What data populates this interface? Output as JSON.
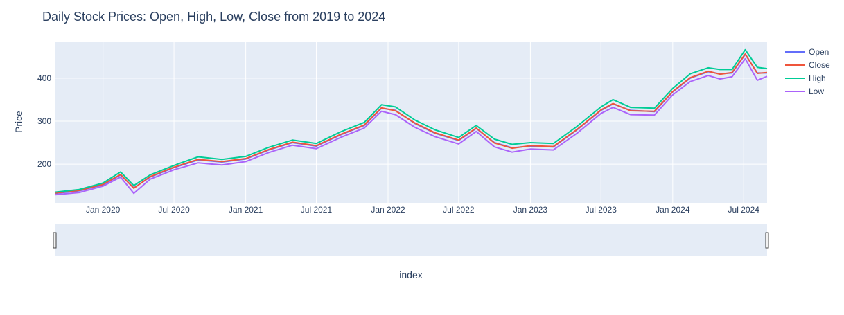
{
  "chart_data": {
    "type": "line",
    "title": "Daily Stock Prices: Open, High, Low, Close from 2019 to 2024",
    "xlabel": "index",
    "ylabel": "Price",
    "x_type": "date",
    "xlim": [
      "2019-09-01",
      "2024-08-30"
    ],
    "ylim": [
      110,
      485
    ],
    "x_ticks": [
      {
        "date": "2020-01-01",
        "label": "Jan 2020"
      },
      {
        "date": "2020-07-01",
        "label": "Jul 2020"
      },
      {
        "date": "2021-01-01",
        "label": "Jan 2021"
      },
      {
        "date": "2021-07-01",
        "label": "Jul 2021"
      },
      {
        "date": "2022-01-01",
        "label": "Jan 2022"
      },
      {
        "date": "2022-07-01",
        "label": "Jul 2022"
      },
      {
        "date": "2023-01-01",
        "label": "Jan 2023"
      },
      {
        "date": "2023-07-01",
        "label": "Jul 2023"
      },
      {
        "date": "2024-01-01",
        "label": "Jan 2024"
      },
      {
        "date": "2024-07-01",
        "label": "Jul 2024"
      }
    ],
    "y_ticks": [
      200,
      300,
      400
    ],
    "grid": true,
    "legend_position": "top-right",
    "range_slider": true,
    "series": [
      {
        "name": "Open",
        "color": "#636efa",
        "x": [
          "2019-09-01",
          "2019-11-01",
          "2020-01-01",
          "2020-02-15",
          "2020-03-20",
          "2020-05-01",
          "2020-07-01",
          "2020-09-01",
          "2020-11-01",
          "2021-01-01",
          "2021-03-01",
          "2021-05-01",
          "2021-07-01",
          "2021-09-01",
          "2021-11-01",
          "2021-12-15",
          "2022-01-20",
          "2022-03-10",
          "2022-05-01",
          "2022-07-01",
          "2022-08-15",
          "2022-10-01",
          "2022-11-15",
          "2023-01-01",
          "2023-03-01",
          "2023-05-01",
          "2023-07-01",
          "2023-08-01",
          "2023-09-15",
          "2023-11-15",
          "2024-01-01",
          "2024-02-15",
          "2024-04-01",
          "2024-05-01",
          "2024-06-01",
          "2024-07-05",
          "2024-08-05",
          "2024-08-30"
        ],
        "values": [
          132,
          138,
          152,
          175,
          145,
          170,
          192,
          210,
          205,
          212,
          233,
          250,
          242,
          268,
          290,
          330,
          325,
          295,
          272,
          255,
          283,
          250,
          238,
          242,
          240,
          280,
          325,
          340,
          325,
          322,
          368,
          400,
          415,
          410,
          412,
          455,
          412,
          412
        ]
      },
      {
        "name": "Close",
        "color": "#ef553b",
        "x": [
          "2019-09-01",
          "2019-11-01",
          "2020-01-01",
          "2020-02-15",
          "2020-03-20",
          "2020-05-01",
          "2020-07-01",
          "2020-09-01",
          "2020-11-01",
          "2021-01-01",
          "2021-03-01",
          "2021-05-01",
          "2021-07-01",
          "2021-09-01",
          "2021-11-01",
          "2021-12-15",
          "2022-01-20",
          "2022-03-10",
          "2022-05-01",
          "2022-07-01",
          "2022-08-15",
          "2022-10-01",
          "2022-11-15",
          "2023-01-01",
          "2023-03-01",
          "2023-05-01",
          "2023-07-01",
          "2023-08-01",
          "2023-09-15",
          "2023-11-15",
          "2024-01-01",
          "2024-02-15",
          "2024-04-01",
          "2024-05-01",
          "2024-06-01",
          "2024-07-05",
          "2024-08-05",
          "2024-08-30"
        ],
        "values": [
          133,
          139,
          153,
          176,
          144,
          171,
          193,
          211,
          206,
          213,
          234,
          251,
          243,
          269,
          291,
          331,
          324,
          296,
          273,
          256,
          284,
          249,
          237,
          243,
          241,
          281,
          326,
          341,
          324,
          323,
          369,
          401,
          416,
          409,
          413,
          456,
          411,
          413
        ]
      },
      {
        "name": "High",
        "color": "#00cc96",
        "x": [
          "2019-09-01",
          "2019-11-01",
          "2020-01-01",
          "2020-02-15",
          "2020-03-20",
          "2020-05-01",
          "2020-07-01",
          "2020-09-01",
          "2020-11-01",
          "2021-01-01",
          "2021-03-01",
          "2021-05-01",
          "2021-07-01",
          "2021-09-01",
          "2021-11-01",
          "2021-12-15",
          "2022-01-20",
          "2022-03-10",
          "2022-05-01",
          "2022-07-01",
          "2022-08-15",
          "2022-10-01",
          "2022-11-15",
          "2023-01-01",
          "2023-03-01",
          "2023-05-01",
          "2023-07-01",
          "2023-08-01",
          "2023-09-15",
          "2023-11-15",
          "2024-01-01",
          "2024-02-15",
          "2024-04-01",
          "2024-05-01",
          "2024-06-01",
          "2024-07-05",
          "2024-08-05",
          "2024-08-30"
        ],
        "values": [
          135,
          141,
          156,
          182,
          150,
          175,
          197,
          217,
          211,
          218,
          239,
          256,
          248,
          275,
          297,
          338,
          333,
          303,
          280,
          262,
          290,
          258,
          246,
          250,
          248,
          288,
          333,
          350,
          332,
          330,
          376,
          410,
          424,
          420,
          420,
          466,
          425,
          422
        ]
      },
      {
        "name": "Low",
        "color": "#ab63fa",
        "x": [
          "2019-09-01",
          "2019-11-01",
          "2020-01-01",
          "2020-02-15",
          "2020-03-20",
          "2020-05-01",
          "2020-07-01",
          "2020-09-01",
          "2020-11-01",
          "2021-01-01",
          "2021-03-01",
          "2021-05-01",
          "2021-07-01",
          "2021-09-01",
          "2021-11-01",
          "2021-12-15",
          "2022-01-20",
          "2022-03-10",
          "2022-05-01",
          "2022-07-01",
          "2022-08-15",
          "2022-10-01",
          "2022-11-15",
          "2023-01-01",
          "2023-03-01",
          "2023-05-01",
          "2023-07-01",
          "2023-08-01",
          "2023-09-15",
          "2023-11-15",
          "2024-01-01",
          "2024-02-15",
          "2024-04-01",
          "2024-05-01",
          "2024-06-01",
          "2024-07-05",
          "2024-08-05",
          "2024-08-30"
        ],
        "values": [
          129,
          134,
          149,
          170,
          132,
          165,
          187,
          203,
          198,
          206,
          227,
          244,
          236,
          262,
          284,
          323,
          315,
          286,
          264,
          247,
          276,
          240,
          228,
          235,
          233,
          272,
          318,
          332,
          315,
          314,
          361,
          392,
          406,
          398,
          403,
          445,
          395,
          404
        ]
      }
    ]
  }
}
